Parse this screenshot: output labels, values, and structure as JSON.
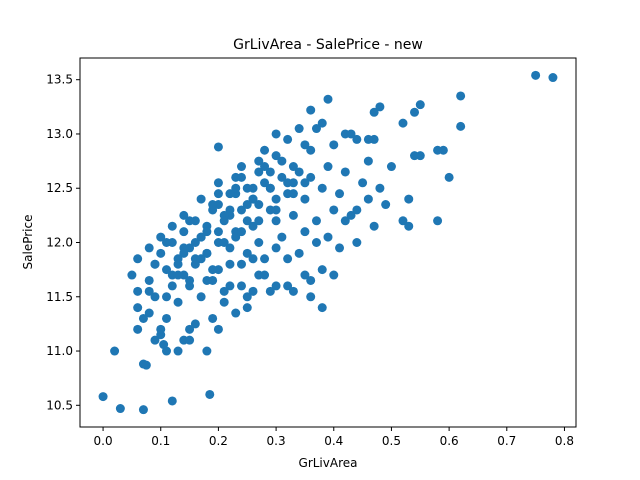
{
  "chart_data": {
    "type": "scatter",
    "title": "GrLivArea - SalePrice - new",
    "xlabel": "GrLivArea",
    "ylabel": "SalePrice",
    "xlim": [
      -0.04,
      0.82
    ],
    "ylim": [
      10.3,
      13.7
    ],
    "xticks": [
      0.0,
      0.1,
      0.2,
      0.3,
      0.4,
      0.5,
      0.6,
      0.7,
      0.8
    ],
    "xtick_labels": [
      "0.0",
      "0.1",
      "0.2",
      "0.3",
      "0.4",
      "0.5",
      "0.6",
      "0.7",
      "0.8"
    ],
    "yticks": [
      10.5,
      11.0,
      11.5,
      12.0,
      12.5,
      13.0,
      13.5
    ],
    "ytick_labels": [
      "10.5",
      "11.0",
      "11.5",
      "12.0",
      "12.5",
      "13.0",
      "13.5"
    ],
    "grid": false,
    "color": "#1f77b4",
    "series": [
      {
        "x": [
          0.0,
          0.03,
          0.07,
          0.12,
          0.185,
          0.02,
          0.07,
          0.075,
          0.13,
          0.105,
          0.18,
          0.06,
          0.09,
          0.1,
          0.14,
          0.15,
          0.06,
          0.08,
          0.11,
          0.16,
          0.2,
          0.06,
          0.09,
          0.13,
          0.23,
          0.25,
          0.05,
          0.08,
          0.12,
          0.17,
          0.21,
          0.26,
          0.3,
          0.38,
          0.06,
          0.09,
          0.11,
          0.14,
          0.19,
          0.22,
          0.27,
          0.33,
          0.36,
          0.08,
          0.1,
          0.13,
          0.16,
          0.2,
          0.24,
          0.28,
          0.32,
          0.35,
          0.38,
          0.1,
          0.12,
          0.15,
          0.18,
          0.22,
          0.26,
          0.3,
          0.34,
          0.37,
          0.41,
          0.44,
          0.12,
          0.14,
          0.17,
          0.2,
          0.23,
          0.27,
          0.31,
          0.35,
          0.39,
          0.42,
          0.47,
          0.52,
          0.53,
          0.58,
          0.14,
          0.16,
          0.19,
          0.22,
          0.25,
          0.29,
          0.33,
          0.37,
          0.4,
          0.43,
          0.46,
          0.49,
          0.17,
          0.2,
          0.23,
          0.26,
          0.29,
          0.32,
          0.35,
          0.38,
          0.41,
          0.45,
          0.48,
          0.53,
          0.6,
          0.2,
          0.23,
          0.26,
          0.29,
          0.32,
          0.36,
          0.39,
          0.42,
          0.46,
          0.5,
          0.55,
          0.54,
          0.59,
          0.24,
          0.27,
          0.3,
          0.33,
          0.36,
          0.4,
          0.44,
          0.47,
          0.52,
          0.58,
          0.62,
          0.28,
          0.32,
          0.35,
          0.37,
          0.42,
          0.46,
          0.54,
          0.3,
          0.34,
          0.38,
          0.43,
          0.47,
          0.55,
          0.62,
          0.36,
          0.39,
          0.48,
          0.2,
          0.75,
          0.78,
          0.08,
          0.11,
          0.15,
          0.18,
          0.21,
          0.24,
          0.13,
          0.16,
          0.19,
          0.22,
          0.25,
          0.28,
          0.11,
          0.14,
          0.17,
          0.2,
          0.23,
          0.26,
          0.15,
          0.18,
          0.21,
          0.24,
          0.27,
          0.3,
          0.33,
          0.19,
          0.22,
          0.25,
          0.28,
          0.31,
          0.34,
          0.12,
          0.15,
          0.18,
          0.21,
          0.24,
          0.27,
          0.3,
          0.09,
          0.13,
          0.17,
          0.21,
          0.25,
          0.29,
          0.33,
          0.14,
          0.18,
          0.22,
          0.26,
          0.3,
          0.16,
          0.2,
          0.24,
          0.28,
          0.23,
          0.27,
          0.31,
          0.35,
          0.1,
          0.07,
          0.19,
          0.11,
          0.15,
          0.25,
          0.29,
          0.32,
          0.36,
          0.4,
          0.44
        ],
        "y": [
          10.58,
          10.47,
          10.46,
          10.54,
          10.6,
          11.0,
          10.88,
          10.87,
          11.0,
          11.06,
          11.0,
          11.2,
          11.1,
          11.15,
          11.1,
          11.2,
          11.4,
          11.35,
          11.3,
          11.25,
          11.2,
          11.55,
          11.5,
          11.45,
          11.35,
          11.4,
          11.7,
          11.65,
          11.6,
          11.5,
          11.45,
          11.55,
          11.6,
          11.4,
          11.85,
          11.8,
          11.75,
          11.7,
          11.65,
          11.6,
          11.7,
          11.55,
          11.65,
          11.95,
          11.9,
          11.85,
          11.8,
          11.75,
          11.8,
          11.7,
          11.85,
          11.7,
          11.75,
          12.05,
          12.0,
          11.95,
          11.9,
          11.95,
          11.85,
          11.95,
          11.9,
          12.0,
          11.95,
          12.0,
          12.15,
          12.1,
          12.05,
          12.0,
          12.1,
          12.0,
          12.05,
          12.1,
          12.05,
          12.2,
          12.15,
          12.2,
          12.15,
          12.2,
          12.25,
          12.2,
          12.3,
          12.25,
          12.2,
          12.3,
          12.25,
          12.2,
          12.3,
          12.25,
          12.4,
          12.35,
          12.4,
          12.35,
          12.45,
          12.4,
          12.5,
          12.45,
          12.4,
          12.5,
          12.45,
          12.55,
          12.5,
          12.4,
          12.6,
          12.55,
          12.6,
          12.5,
          12.65,
          12.55,
          12.6,
          12.7,
          12.65,
          12.75,
          12.7,
          12.8,
          12.8,
          12.85,
          12.7,
          12.75,
          12.8,
          12.7,
          12.85,
          12.9,
          12.95,
          12.95,
          13.1,
          12.85,
          13.07,
          12.85,
          12.95,
          12.9,
          13.05,
          13.0,
          12.95,
          13.2,
          13.0,
          13.05,
          13.1,
          13.0,
          13.2,
          13.27,
          13.35,
          13.22,
          13.32,
          13.25,
          12.88,
          13.54,
          13.52,
          11.55,
          11.5,
          11.6,
          11.65,
          11.55,
          11.6,
          11.8,
          11.85,
          11.75,
          11.8,
          11.9,
          11.85,
          12.0,
          11.95,
          12.05,
          12.1,
          12.05,
          12.15,
          12.2,
          12.15,
          12.25,
          12.3,
          12.35,
          12.4,
          12.45,
          12.35,
          12.45,
          12.5,
          12.55,
          12.6,
          12.65,
          11.7,
          11.65,
          11.9,
          12.0,
          12.1,
          12.2,
          12.3,
          11.8,
          11.7,
          11.85,
          12.2,
          12.35,
          12.5,
          12.55,
          11.9,
          12.1,
          12.3,
          12.4,
          12.2,
          12.0,
          12.45,
          12.6,
          12.7,
          12.5,
          12.65,
          12.75,
          12.55,
          11.2,
          11.3,
          11.3,
          11.0,
          11.1,
          11.5,
          11.55,
          11.6,
          11.5,
          11.7,
          12.3
        ]
      }
    ]
  }
}
